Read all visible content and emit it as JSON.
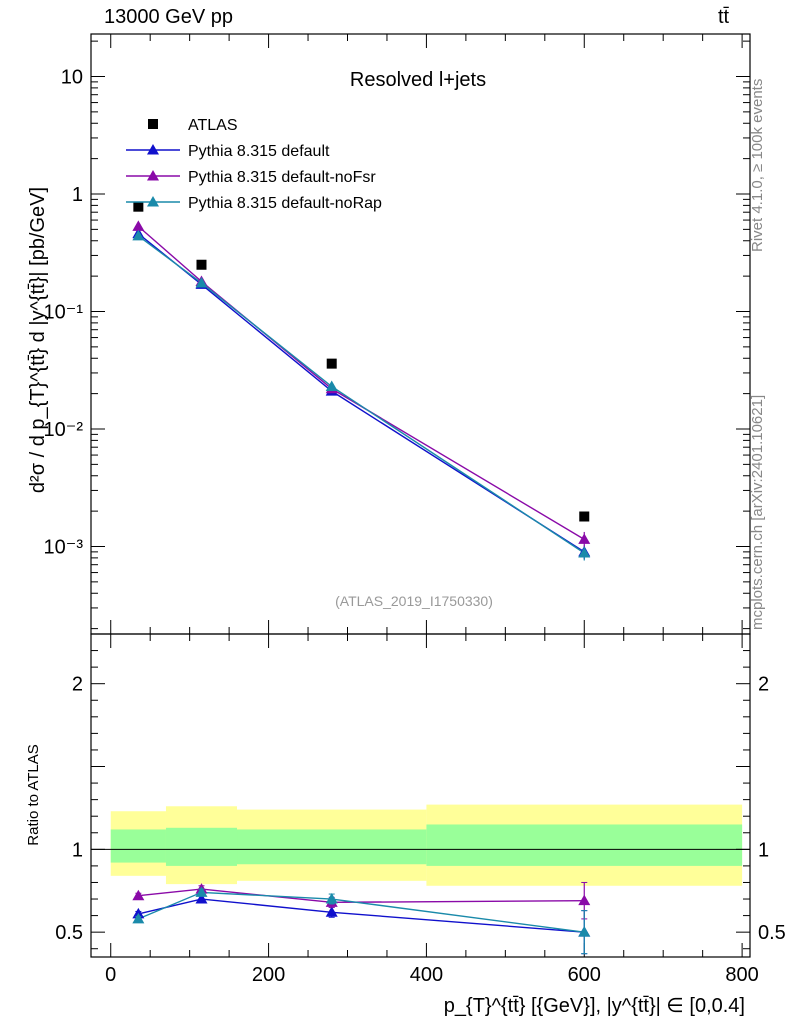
{
  "header": {
    "energy_label": "13000 GeV pp",
    "process_label": "tt̄"
  },
  "side_labels": {
    "rivet": "Rivet 4.1.0, ≥ 100k events",
    "mcplots": "mcplots.cern.ch [arXiv:2401.10621]"
  },
  "chart_data": [
    {
      "type": "scatter",
      "panel": "main",
      "title": "Resolved l+jets",
      "analysis_tag": "(ATLAS_2019_I1750330)",
      "ylabel": "d²σ / d p_{T}^{tt̄} d |y^{tt̄}| [pb/GeV]",
      "yscale": "log",
      "xlim": [
        -25,
        810
      ],
      "ylim": [
        0.00018,
        23
      ],
      "y_ticks": [
        {
          "value": 0.001,
          "label": "10⁻³"
        },
        {
          "value": 0.01,
          "label": "10⁻²"
        },
        {
          "value": 0.1,
          "label": "10⁻¹"
        },
        {
          "value": 1,
          "label": "1"
        },
        {
          "value": 10,
          "label": "10"
        }
      ],
      "legend_position": "top-left",
      "series": [
        {
          "name": "ATLAS",
          "marker": "square",
          "color": "#000000",
          "x": [
            35,
            115,
            280,
            600
          ],
          "y": [
            0.78,
            0.25,
            0.036,
            0.0018
          ]
        },
        {
          "name": "Pythia 8.315 default",
          "marker": "triangle",
          "color": "#1010cc",
          "x": [
            35,
            115,
            280,
            600
          ],
          "y": [
            0.46,
            0.17,
            0.021,
            0.0009
          ],
          "yerr": [
            0.01,
            0.005,
            0.001,
            0.00012
          ]
        },
        {
          "name": "Pythia 8.315 default-noFsr",
          "marker": "triangle",
          "color": "#8a0aa8",
          "x": [
            35,
            115,
            280,
            600
          ],
          "y": [
            0.53,
            0.18,
            0.022,
            0.00115
          ],
          "yerr": [
            0.01,
            0.005,
            0.001,
            0.00018
          ]
        },
        {
          "name": "Pythia 8.315 default-noRap",
          "marker": "triangle",
          "color": "#1a8aaa",
          "x": [
            35,
            115,
            280,
            600
          ],
          "y": [
            0.44,
            0.175,
            0.023,
            0.00088
          ],
          "yerr": [
            0.01,
            0.005,
            0.001,
            0.00012
          ]
        }
      ]
    },
    {
      "type": "line",
      "panel": "ratio",
      "ylabel": "Ratio to ATLAS",
      "xlabel": "p_{T}^{tt̄} [{GeV}], |y^{tt̄}| ∈ [0,0.4]",
      "xlim": [
        -25,
        810
      ],
      "ylim": [
        0.35,
        2.3
      ],
      "x_ticks": [
        0,
        200,
        400,
        600,
        800
      ],
      "y_ticks": [
        0.5,
        1,
        2
      ],
      "reference_line": 1,
      "bands": [
        {
          "x_low": 0,
          "x_high": 70,
          "inner": [
            0.92,
            1.12
          ],
          "outer": [
            0.84,
            1.23
          ]
        },
        {
          "x_low": 70,
          "x_high": 160,
          "inner": [
            0.9,
            1.13
          ],
          "outer": [
            0.79,
            1.26
          ]
        },
        {
          "x_low": 160,
          "x_high": 400,
          "inner": [
            0.91,
            1.12
          ],
          "outer": [
            0.81,
            1.24
          ]
        },
        {
          "x_low": 400,
          "x_high": 800,
          "inner": [
            0.9,
            1.15
          ],
          "outer": [
            0.78,
            1.27
          ]
        }
      ],
      "band_colors": {
        "inner": "#99ff99",
        "outer": "#ffff99"
      },
      "series": [
        {
          "name": "Pythia 8.315 default",
          "color": "#1010cc",
          "x": [
            35,
            115,
            280,
            600
          ],
          "y": [
            0.61,
            0.7,
            0.62,
            0.5
          ],
          "yerr": [
            0.015,
            0.02,
            0.03,
            0.13
          ]
        },
        {
          "name": "Pythia 8.315 default-noFsr",
          "color": "#8a0aa8",
          "x": [
            35,
            115,
            280,
            600
          ],
          "y": [
            0.72,
            0.76,
            0.68,
            0.69
          ],
          "yerr": [
            0.015,
            0.02,
            0.03,
            0.11
          ]
        },
        {
          "name": "Pythia 8.315 default-noRap",
          "color": "#1a8aaa",
          "x": [
            35,
            115,
            280,
            600
          ],
          "y": [
            0.58,
            0.74,
            0.7,
            0.5
          ],
          "yerr": [
            0.015,
            0.02,
            0.03,
            0.13
          ]
        }
      ]
    }
  ]
}
